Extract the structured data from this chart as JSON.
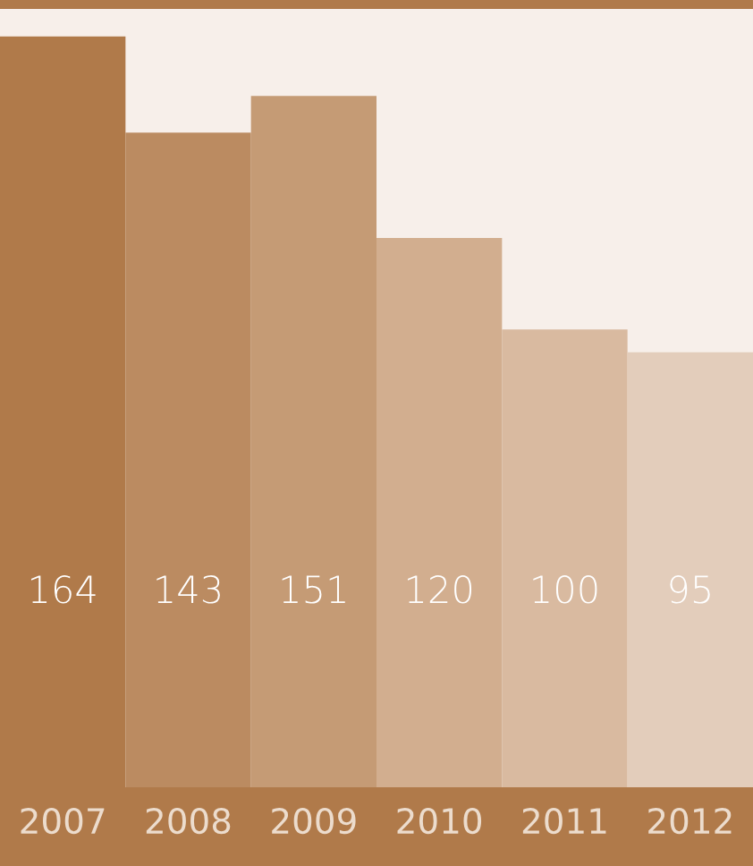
{
  "chart_data": {
    "type": "bar",
    "categories": [
      "2007",
      "2008",
      "2009",
      "2010",
      "2011",
      "2012"
    ],
    "values": [
      164,
      143,
      151,
      120,
      100,
      95
    ],
    "colors": [
      "#b07a4a",
      "#bb8b61",
      "#c59b75",
      "#d2ae8f",
      "#d9baa0",
      "#e3cdbb"
    ],
    "ylim": [
      0,
      170
    ],
    "data_labels": true,
    "grid": false,
    "legend": false,
    "tick_labels": "x"
  }
}
